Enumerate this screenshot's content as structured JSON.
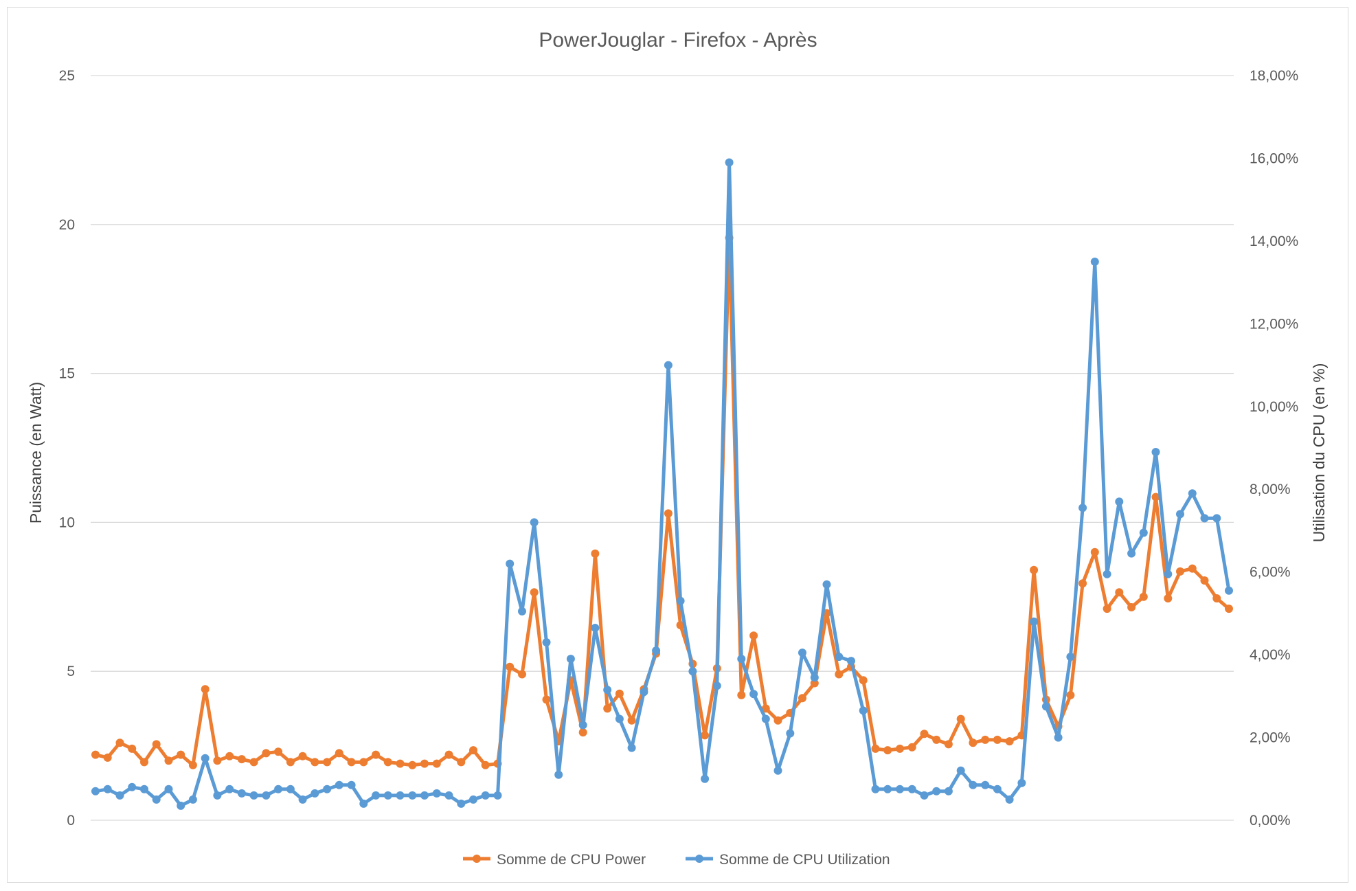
{
  "chart_data": {
    "type": "line",
    "title": "PowerJouglar - Firefox - Après",
    "ylabel": "Puissance (en Watt)",
    "y2label": "Utilisation du CPU (en %)",
    "ylim": [
      0,
      25
    ],
    "y2lim": [
      0,
      18
    ],
    "yticks": [
      "0",
      "5",
      "10",
      "15",
      "20",
      "25"
    ],
    "y2ticks": [
      "0,00%",
      "2,00%",
      "4,00%",
      "6,00%",
      "8,00%",
      "10,00%",
      "12,00%",
      "14,00%",
      "16,00%",
      "18,00%"
    ],
    "grid": true,
    "legend_position": "bottom",
    "series": [
      {
        "name": "Somme de CPU Power",
        "axis": "left",
        "color": "#ED7D31",
        "values": [
          2.2,
          2.1,
          2.6,
          2.4,
          1.95,
          2.55,
          2.0,
          2.2,
          1.85,
          4.4,
          2.0,
          2.15,
          2.05,
          1.95,
          2.25,
          2.3,
          1.95,
          2.15,
          1.95,
          1.95,
          2.25,
          1.95,
          1.95,
          2.2,
          1.95,
          1.9,
          1.85,
          1.9,
          1.9,
          2.2,
          1.95,
          2.35,
          1.85,
          1.9,
          5.15,
          4.9,
          7.65,
          4.05,
          2.65,
          4.7,
          2.95,
          8.95,
          3.75,
          4.25,
          3.35,
          4.4,
          5.6,
          10.3,
          6.55,
          5.25,
          2.85,
          5.1,
          19.55,
          4.2,
          6.2,
          3.75,
          3.35,
          3.6,
          4.1,
          4.6,
          6.95,
          4.9,
          5.15,
          4.7,
          2.4,
          2.35,
          2.4,
          2.45,
          2.9,
          2.7,
          2.55,
          3.4,
          2.6,
          2.7,
          2.7,
          2.65,
          2.85,
          8.4,
          4.05,
          3.15,
          4.2,
          7.95,
          9.0,
          7.1,
          7.65,
          7.15,
          7.5,
          10.85,
          7.45,
          8.35,
          8.45,
          8.05,
          7.45,
          7.1
        ]
      },
      {
        "name": "Somme de CPU Utilization",
        "axis": "right",
        "color": "#5B9BD5",
        "values": [
          0.7,
          0.75,
          0.6,
          0.8,
          0.75,
          0.5,
          0.75,
          0.35,
          0.5,
          1.5,
          0.6,
          0.75,
          0.65,
          0.6,
          0.6,
          0.75,
          0.75,
          0.5,
          0.65,
          0.75,
          0.85,
          0.85,
          0.4,
          0.6,
          0.6,
          0.6,
          0.6,
          0.6,
          0.65,
          0.6,
          0.4,
          0.5,
          0.6,
          0.6,
          6.2,
          5.05,
          7.2,
          4.3,
          1.1,
          3.9,
          2.3,
          4.65,
          3.15,
          2.45,
          1.75,
          3.1,
          4.1,
          11.0,
          5.3,
          3.6,
          1.0,
          3.25,
          15.9,
          3.9,
          3.05,
          2.45,
          1.2,
          2.1,
          4.05,
          3.45,
          5.7,
          3.95,
          3.85,
          2.65,
          0.75,
          0.75,
          0.75,
          0.75,
          0.6,
          0.7,
          0.7,
          1.2,
          0.85,
          0.85,
          0.75,
          0.5,
          0.9,
          4.8,
          2.75,
          2.0,
          3.95,
          7.55,
          13.5,
          5.95,
          7.7,
          6.45,
          6.95,
          8.9,
          5.95,
          7.4,
          7.9,
          7.3,
          7.3,
          5.55
        ]
      }
    ]
  }
}
